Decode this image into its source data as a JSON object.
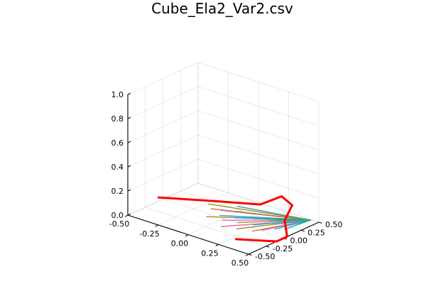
{
  "chart_data": {
    "type": "line",
    "projection": "3d",
    "title": "Cube_Ela2_Var2.csv",
    "xlabel": "",
    "ylabel": "",
    "zlabel": "",
    "xlim": [
      -0.5,
      0.5
    ],
    "ylim": [
      -0.5,
      0.5
    ],
    "zlim": [
      0,
      1
    ],
    "x_ticks": [
      "-0.50",
      "-0.25",
      "0.00",
      "0.25",
      "0.50"
    ],
    "y_ticks": [
      "-0.50",
      "-0.25",
      "0.00",
      "0.25",
      "0.50"
    ],
    "z_ticks": [
      "0.0",
      "0.2",
      "0.4",
      "0.6",
      "0.8",
      "1.0"
    ],
    "grid": true,
    "legend": "none",
    "boundary_series": {
      "color": "#ff0000",
      "points": [
        [
          -0.45,
          -0.15,
          0.07
        ],
        [
          -0.1,
          0.05,
          0.1
        ],
        [
          0.13,
          0.3,
          0.08
        ],
        [
          0.25,
          0.4,
          0.16
        ],
        [
          0.28,
          0.5,
          0.07
        ],
        [
          0.38,
          0.22,
          0.05
        ],
        [
          0.5,
          0.05,
          0.0
        ],
        [
          0.5,
          -0.1,
          0.0
        ],
        [
          0.28,
          -0.3,
          0.0
        ]
      ]
    },
    "fan_series": [
      {
        "color": "#3da4ab",
        "tip": [
          0.5,
          0.38,
          0.05
        ],
        "from": [
          0.0,
          0.2,
          0.05
        ]
      },
      {
        "color": "#3da4ab",
        "tip": [
          0.5,
          0.38,
          0.05
        ],
        "from": [
          0.05,
          0.1,
          0.05
        ]
      },
      {
        "color": "#3d9bd6",
        "tip": [
          0.5,
          0.38,
          0.05
        ],
        "from": [
          -0.05,
          0.05,
          0.04
        ]
      },
      {
        "color": "#3d9bd6",
        "tip": [
          0.5,
          0.38,
          0.05
        ],
        "from": [
          0.0,
          -0.05,
          0.04
        ]
      },
      {
        "color": "#e26f46",
        "tip": [
          0.5,
          0.38,
          0.05
        ],
        "from": [
          -0.1,
          0.0,
          0.05
        ]
      },
      {
        "color": "#c271d2",
        "tip": [
          0.5,
          0.38,
          0.05
        ],
        "from": [
          0.05,
          -0.1,
          0.03
        ]
      },
      {
        "color": "#8e971d",
        "tip": [
          0.5,
          0.38,
          0.05
        ],
        "from": [
          -0.15,
          0.05,
          0.06
        ]
      },
      {
        "color": "#ac8d18",
        "tip": [
          0.5,
          0.38,
          0.05
        ],
        "from": [
          -0.05,
          -0.15,
          0.04
        ]
      },
      {
        "color": "#00a9ad",
        "tip": [
          0.5,
          0.38,
          0.05
        ],
        "from": [
          0.1,
          0.0,
          0.04
        ]
      },
      {
        "color": "#ed5e93",
        "tip": [
          0.5,
          0.38,
          0.05
        ],
        "from": [
          0.1,
          -0.2,
          0.02
        ]
      },
      {
        "color": "#c68125",
        "tip": [
          0.5,
          0.38,
          0.05
        ],
        "from": [
          0.15,
          -0.05,
          0.03
        ]
      },
      {
        "color": "#00a98d",
        "tip": [
          0.5,
          0.38,
          0.05
        ],
        "from": [
          0.2,
          0.1,
          0.04
        ]
      },
      {
        "color": "#8e971d",
        "tip": [
          0.5,
          0.38,
          0.05
        ],
        "from": [
          0.2,
          -0.15,
          0.02
        ]
      },
      {
        "color": "#3d9bd6",
        "tip": [
          0.5,
          0.38,
          0.05
        ],
        "from": [
          0.25,
          0.0,
          0.03
        ]
      },
      {
        "color": "#e26f46",
        "tip": [
          0.5,
          0.38,
          0.05
        ],
        "from": [
          0.3,
          -0.1,
          0.02
        ]
      },
      {
        "color": "#3da4ab",
        "tip": [
          0.5,
          0.38,
          0.05
        ],
        "from": [
          0.3,
          0.15,
          0.04
        ]
      },
      {
        "color": "#c271d2",
        "tip": [
          0.5,
          0.38,
          0.05
        ],
        "from": [
          0.35,
          -0.05,
          0.03
        ]
      },
      {
        "color": "#3d9bd6",
        "tip": [
          0.5,
          0.38,
          0.05
        ],
        "from": [
          0.4,
          0.05,
          0.03
        ]
      },
      {
        "color": "#3da4ab",
        "tip": [
          0.5,
          0.38,
          0.05
        ],
        "from": [
          0.4,
          0.2,
          0.04
        ]
      },
      {
        "color": "#00a98d",
        "tip": [
          0.5,
          0.38,
          0.05
        ],
        "from": [
          0.45,
          0.1,
          0.03
        ]
      }
    ]
  }
}
